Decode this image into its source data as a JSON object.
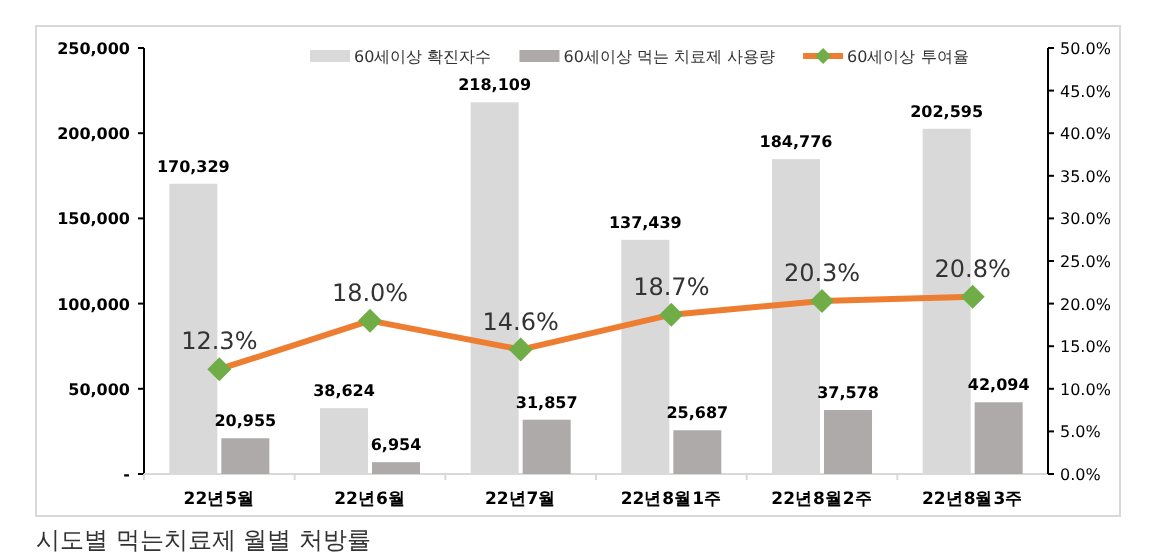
{
  "chart_data": {
    "type": "bar",
    "categories": [
      "22년5월",
      "22년6월",
      "22년7월",
      "22년8월1주",
      "22년8월2주",
      "22년8월3주"
    ],
    "series": [
      {
        "name": "60세이상 확진자수",
        "color": "#d9d9d9",
        "values": [
          170329,
          38624,
          218109,
          137439,
          184776,
          202595
        ],
        "value_labels": [
          "170,329",
          "38,624",
          "218,109",
          "137,439",
          "184,776",
          "202,595"
        ]
      },
      {
        "name": "60세이상 먹는 치료제 사용량",
        "color": "#aeaaaa",
        "values": [
          20955,
          6954,
          31857,
          25687,
          37578,
          42094
        ],
        "value_labels": [
          "20,955",
          "6,954",
          "31,857",
          "25,687",
          "37,578",
          "42,094"
        ]
      },
      {
        "name": "60세이상 투여율",
        "type": "line",
        "axis": "y2",
        "color": "#ed7d31",
        "colors": [
          "#70ad47",
          "#70ad47",
          "#70ad47",
          "#70ad47",
          "#70ad47",
          "#70ad47"
        ],
        "marker": "diamond",
        "values": [
          12.3,
          18.0,
          14.6,
          18.7,
          20.3,
          20.8
        ],
        "value_labels": [
          "12.3%",
          "18.0%",
          "14.6%",
          "18.7%",
          "20.3%",
          "20.8%"
        ]
      }
    ],
    "ylim": [
      0,
      250000
    ],
    "yticks": [
      {
        "value": 0,
        "label": "-"
      },
      {
        "value": 50000,
        "label": "50,000"
      },
      {
        "value": 100000,
        "label": "100,000"
      },
      {
        "value": 150000,
        "label": "150,000"
      },
      {
        "value": 200000,
        "label": "200,000"
      },
      {
        "value": 250000,
        "label": "250,000"
      }
    ],
    "y2lim": [
      0,
      50
    ],
    "y2ticks": [
      {
        "value": 0,
        "label": "0.0%"
      },
      {
        "value": 5,
        "label": "5.0%"
      },
      {
        "value": 10,
        "label": "10.0%"
      },
      {
        "value": 15,
        "label": "15.0%"
      },
      {
        "value": 20,
        "label": "20.0%"
      },
      {
        "value": 25,
        "label": "25.0%"
      },
      {
        "value": 30,
        "label": "30.0%"
      },
      {
        "value": 35,
        "label": "35.0%"
      },
      {
        "value": 40,
        "label": "40.0%"
      },
      {
        "value": 45,
        "label": "45.0%"
      },
      {
        "value": 50,
        "label": "50.0%"
      }
    ],
    "legend": "top",
    "grid": false,
    "annotations": [
      "시도별 먹는치료제 월별 처방률"
    ]
  }
}
